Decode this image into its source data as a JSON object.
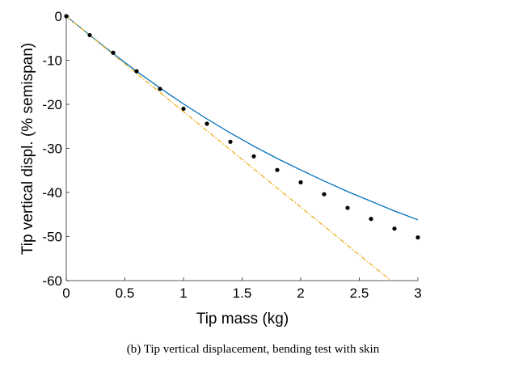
{
  "chart_data": {
    "type": "line",
    "caption": "(b)  Tip vertical displacement, bending test with skin",
    "xlabel": "Tip mass (kg)",
    "ylabel": "Tip vertical displ. (% semispan)",
    "xlim": [
      0,
      3
    ],
    "ylim": [
      -60,
      0
    ],
    "xticks": [
      "0",
      "0.5",
      "1",
      "1.5",
      "2",
      "2.5",
      "3"
    ],
    "yticks": [
      "0",
      "-10",
      "-20",
      "-30",
      "-40",
      "-50",
      "-60"
    ],
    "grid": false,
    "colors": {
      "nonlinear": "#0072BD",
      "linear": "#EDB120",
      "experiment": "#000000"
    },
    "series": [
      {
        "style": "solid-line",
        "x": [
          0,
          0.2,
          0.4,
          0.6,
          0.8,
          1.0,
          1.2,
          1.4,
          1.6,
          1.8,
          2.0,
          2.2,
          2.4,
          2.6,
          2.8,
          3.0
        ],
        "y": [
          0,
          -4.3,
          -8.5,
          -12.5,
          -16.3,
          -19.9,
          -23.3,
          -26.5,
          -29.5,
          -32.3,
          -34.9,
          -37.4,
          -39.8,
          -42.0,
          -44.2,
          -46.2
        ]
      },
      {
        "style": "dash-dot-line",
        "x": [
          0,
          2.77
        ],
        "y": [
          0,
          -60
        ]
      },
      {
        "style": "markers",
        "x": [
          0,
          0.2,
          0.4,
          0.6,
          0.8,
          1.0,
          1.2,
          1.4,
          1.6,
          1.8,
          2.0,
          2.2,
          2.4,
          2.6,
          2.8,
          3.0
        ],
        "y": [
          0,
          -4.3,
          -8.3,
          -12.5,
          -16.5,
          -21.0,
          -24.4,
          -28.5,
          -31.8,
          -34.9,
          -37.7,
          -40.4,
          -43.5,
          -46.0,
          -48.2,
          -50.2
        ]
      }
    ]
  }
}
